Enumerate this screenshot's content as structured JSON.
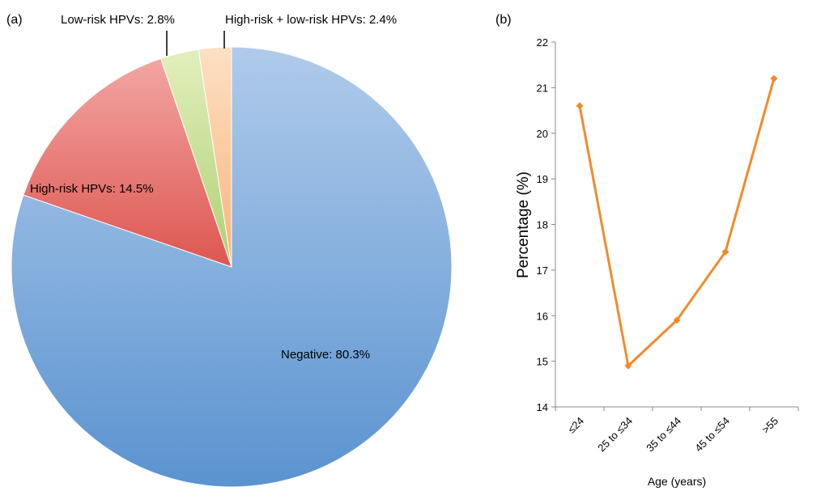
{
  "chart_data": [
    {
      "type": "pie",
      "panel_label": "(a)",
      "slices": [
        {
          "label": "Negative: 80.3%",
          "value": 80.3,
          "color": "#7ea9da"
        },
        {
          "label": "High-risk HPVs: 14.5%",
          "value": 14.5,
          "color": "#e57470"
        },
        {
          "label": "Low-risk HPVs: 2.8%",
          "value": 2.8,
          "color": "#c6dd8e"
        },
        {
          "label": "High-risk + low-risk HPVs: 2.4%",
          "value": 2.4,
          "color": "#fbc79c"
        }
      ]
    },
    {
      "type": "line",
      "panel_label": "(b)",
      "categories": [
        "≤24",
        "25 to ≤34",
        "35 to ≤44",
        "45 to ≤54",
        ">55"
      ],
      "series": [
        {
          "values": [
            20.6,
            14.9,
            15.9,
            17.4,
            21.2
          ],
          "color": "#f28a2a"
        }
      ],
      "xlabel": "Age (years)",
      "ylabel": "Percentage (%)",
      "ylim": [
        14,
        22
      ],
      "yticks": [
        14,
        15,
        16,
        17,
        18,
        19,
        20,
        21,
        22
      ],
      "grid": false
    }
  ]
}
